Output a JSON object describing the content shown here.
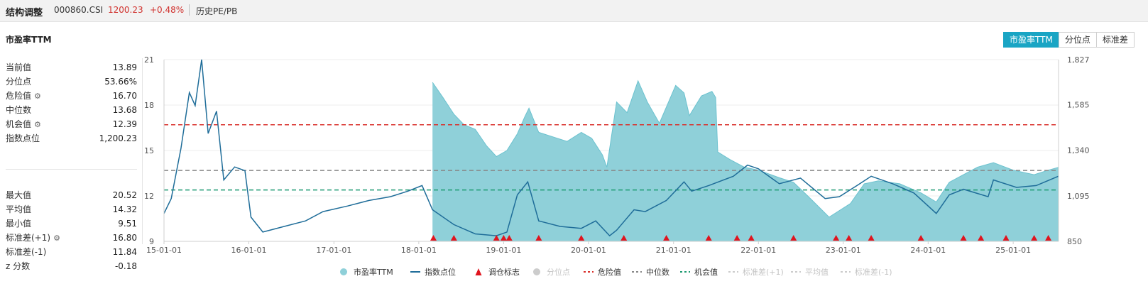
{
  "header": {
    "name": "结构调整",
    "code": "000860.CSI",
    "price": "1200.23",
    "change": "+0.48%",
    "link": "历史PE/PB"
  },
  "section_title": "市盈率TTM",
  "tabs": [
    {
      "label": "市盈率TTM",
      "active": true
    },
    {
      "label": "分位点",
      "active": false
    },
    {
      "label": "标准差",
      "active": false
    }
  ],
  "stats_top": [
    {
      "label": "当前值",
      "value": "13.89",
      "gear": false
    },
    {
      "label": "分位点",
      "value": "53.66%",
      "gear": false
    },
    {
      "label": "危险值",
      "value": "16.70",
      "gear": true
    },
    {
      "label": "中位数",
      "value": "13.68",
      "gear": false
    },
    {
      "label": "机会值",
      "value": "12.39",
      "gear": true
    },
    {
      "label": "指数点位",
      "value": "1,200.23",
      "gear": false
    }
  ],
  "stats_bottom": [
    {
      "label": "最大值",
      "value": "20.52",
      "gear": false
    },
    {
      "label": "平均值",
      "value": "14.32",
      "gear": false
    },
    {
      "label": "最小值",
      "value": "9.51",
      "gear": false
    },
    {
      "label": "标准差(+1)",
      "value": "16.80",
      "gear": true
    },
    {
      "label": "标准差(-1)",
      "value": "11.84",
      "gear": false
    },
    {
      "label": "z 分数",
      "value": "-0.18",
      "gear": false
    }
  ],
  "colors": {
    "pe_fill": "#8fd0d9",
    "pe_stroke": "#6cc2cf",
    "index_line": "#1f6d99",
    "marker": "#e0141e",
    "danger": "#d9302b",
    "median": "#888888",
    "opportunity": "#1e9a72",
    "accent": "#1aa5c4",
    "disabled": "#cccccc"
  },
  "chart_data": {
    "type": "area",
    "x_range": [
      "2015-01-01",
      "2025-07-15"
    ],
    "x_tick_labels": [
      "15-01-01",
      "16-01-01",
      "17-01-01",
      "18-01-01",
      "19-01-01",
      "20-01-01",
      "21-01-01",
      "22-01-01",
      "23-01-01",
      "24-01-01",
      "25-01-01"
    ],
    "left_axis": {
      "ticks": [
        "9",
        "12",
        "15",
        "18",
        "21"
      ],
      "range": [
        9,
        21
      ]
    },
    "right_axis": {
      "ticks": [
        "850",
        "1,095",
        "1,340",
        "1,585",
        "1,827"
      ],
      "range": [
        850,
        1827
      ]
    },
    "reference_lines": [
      {
        "name": "危险值",
        "value": 16.7,
        "color": "#d9302b"
      },
      {
        "name": "中位数",
        "value": 13.68,
        "color": "#888888"
      },
      {
        "name": "机会值",
        "value": 12.39,
        "color": "#1e9a72"
      }
    ],
    "pe_ttm": [
      [
        "2018-03-01",
        19.5
      ],
      [
        "2018-04-15",
        18.5
      ],
      [
        "2018-06-01",
        17.4
      ],
      [
        "2018-07-15",
        16.7
      ],
      [
        "2018-09-01",
        16.4
      ],
      [
        "2018-10-20",
        15.3
      ],
      [
        "2018-12-01",
        14.6
      ],
      [
        "2019-01-15",
        15.0
      ],
      [
        "2019-03-01",
        16.1
      ],
      [
        "2019-04-01",
        17.2
      ],
      [
        "2019-04-20",
        17.8
      ],
      [
        "2019-06-01",
        16.2
      ],
      [
        "2019-08-01",
        15.9
      ],
      [
        "2019-10-01",
        15.6
      ],
      [
        "2019-12-01",
        16.2
      ],
      [
        "2020-01-15",
        15.8
      ],
      [
        "2020-03-01",
        14.7
      ],
      [
        "2020-03-20",
        13.9
      ],
      [
        "2020-05-01",
        18.2
      ],
      [
        "2020-06-15",
        17.5
      ],
      [
        "2020-08-01",
        19.6
      ],
      [
        "2020-09-10",
        18.2
      ],
      [
        "2020-11-01",
        16.8
      ],
      [
        "2021-01-10",
        19.3
      ],
      [
        "2021-02-15",
        18.8
      ],
      [
        "2021-03-10",
        17.3
      ],
      [
        "2021-05-01",
        18.6
      ],
      [
        "2021-06-15",
        18.9
      ],
      [
        "2021-07-01",
        18.5
      ],
      [
        "2021-07-10",
        14.9
      ],
      [
        "2021-09-01",
        14.4
      ],
      [
        "2021-11-01",
        13.9
      ],
      [
        "2022-01-01",
        13.7
      ],
      [
        "2022-04-01",
        13.2
      ],
      [
        "2022-06-01",
        12.9
      ],
      [
        "2022-08-01",
        12.0
      ],
      [
        "2022-11-01",
        10.6
      ],
      [
        "2023-02-01",
        11.5
      ],
      [
        "2023-04-01",
        12.8
      ],
      [
        "2023-06-01",
        13.0
      ],
      [
        "2023-09-01",
        12.8
      ],
      [
        "2023-12-01",
        12.2
      ],
      [
        "2024-02-05",
        11.6
      ],
      [
        "2024-04-01",
        12.9
      ],
      [
        "2024-06-01",
        13.4
      ],
      [
        "2024-08-01",
        13.9
      ],
      [
        "2024-10-08",
        14.2
      ],
      [
        "2025-01-01",
        13.7
      ],
      [
        "2025-04-01",
        13.4
      ],
      [
        "2025-06-01",
        13.7
      ],
      [
        "2025-07-15",
        13.89
      ]
    ],
    "index_points": [
      [
        "2015-01-01",
        1000
      ],
      [
        "2015-02-01",
        1080
      ],
      [
        "2015-03-15",
        1350
      ],
      [
        "2015-04-20",
        1650
      ],
      [
        "2015-05-15",
        1580
      ],
      [
        "2015-06-12",
        1827
      ],
      [
        "2015-07-10",
        1430
      ],
      [
        "2015-08-15",
        1550
      ],
      [
        "2015-09-15",
        1180
      ],
      [
        "2015-11-01",
        1250
      ],
      [
        "2015-12-15",
        1230
      ],
      [
        "2016-01-10",
        980
      ],
      [
        "2016-03-01",
        900
      ],
      [
        "2016-06-01",
        930
      ],
      [
        "2016-09-01",
        960
      ],
      [
        "2016-11-15",
        1010
      ],
      [
        "2017-03-01",
        1040
      ],
      [
        "2017-06-01",
        1070
      ],
      [
        "2017-09-01",
        1090
      ],
      [
        "2017-11-15",
        1120
      ],
      [
        "2018-01-15",
        1150
      ],
      [
        "2018-03-01",
        1020
      ],
      [
        "2018-06-01",
        940
      ],
      [
        "2018-09-01",
        890
      ],
      [
        "2018-12-01",
        880
      ],
      [
        "2019-01-15",
        900
      ],
      [
        "2019-03-01",
        1100
      ],
      [
        "2019-04-15",
        1170
      ],
      [
        "2019-06-01",
        960
      ],
      [
        "2019-09-01",
        930
      ],
      [
        "2019-12-01",
        920
      ],
      [
        "2020-02-01",
        960
      ],
      [
        "2020-04-01",
        880
      ],
      [
        "2020-05-01",
        910
      ],
      [
        "2020-07-15",
        1020
      ],
      [
        "2020-09-01",
        1010
      ],
      [
        "2020-12-01",
        1070
      ],
      [
        "2021-02-15",
        1170
      ],
      [
        "2021-03-20",
        1120
      ],
      [
        "2021-06-01",
        1150
      ],
      [
        "2021-09-15",
        1200
      ],
      [
        "2021-11-15",
        1260
      ],
      [
        "2022-01-01",
        1240
      ],
      [
        "2022-04-01",
        1160
      ],
      [
        "2022-07-01",
        1190
      ],
      [
        "2022-10-15",
        1080
      ],
      [
        "2022-12-15",
        1090
      ],
      [
        "2023-03-01",
        1150
      ],
      [
        "2023-05-01",
        1200
      ],
      [
        "2023-08-01",
        1160
      ],
      [
        "2023-11-01",
        1110
      ],
      [
        "2024-02-05",
        1000
      ],
      [
        "2024-04-01",
        1100
      ],
      [
        "2024-06-01",
        1130
      ],
      [
        "2024-09-15",
        1090
      ],
      [
        "2024-10-08",
        1180
      ],
      [
        "2025-01-15",
        1140
      ],
      [
        "2025-04-10",
        1150
      ],
      [
        "2025-07-15",
        1200.23
      ]
    ],
    "markers": [
      "2018-03-05",
      "2018-06-01",
      "2018-12-01",
      "2019-01-01",
      "2019-01-25",
      "2019-06-01",
      "2019-12-01",
      "2020-06-01",
      "2020-12-01",
      "2021-06-01",
      "2021-10-01",
      "2021-12-01",
      "2022-06-01",
      "2022-12-01",
      "2023-01-25",
      "2023-05-01",
      "2023-12-01",
      "2024-06-01",
      "2024-08-15",
      "2024-12-01",
      "2025-04-01",
      "2025-06-01"
    ],
    "legend": [
      {
        "label": "市盈率TTM",
        "shape": "dot",
        "color": "#8fd0d9",
        "disabled": false
      },
      {
        "label": "指数点位",
        "shape": "line",
        "color": "#1f6d99",
        "disabled": false
      },
      {
        "label": "调仓标志",
        "shape": "triangle",
        "color": "#e0141e",
        "disabled": false
      },
      {
        "label": "分位点",
        "shape": "dot",
        "color": "#cccccc",
        "disabled": true
      },
      {
        "label": "危险值",
        "shape": "dash",
        "color": "#d9302b",
        "disabled": false
      },
      {
        "label": "中位数",
        "shape": "dash",
        "color": "#888888",
        "disabled": false
      },
      {
        "label": "机会值",
        "shape": "dash",
        "color": "#1e9a72",
        "disabled": false
      },
      {
        "label": "标准差(+1)",
        "shape": "dash",
        "color": "#cccccc",
        "disabled": true
      },
      {
        "label": "平均值",
        "shape": "dash",
        "color": "#cccccc",
        "disabled": true
      },
      {
        "label": "标准差(-1)",
        "shape": "dash",
        "color": "#cccccc",
        "disabled": true
      }
    ]
  }
}
